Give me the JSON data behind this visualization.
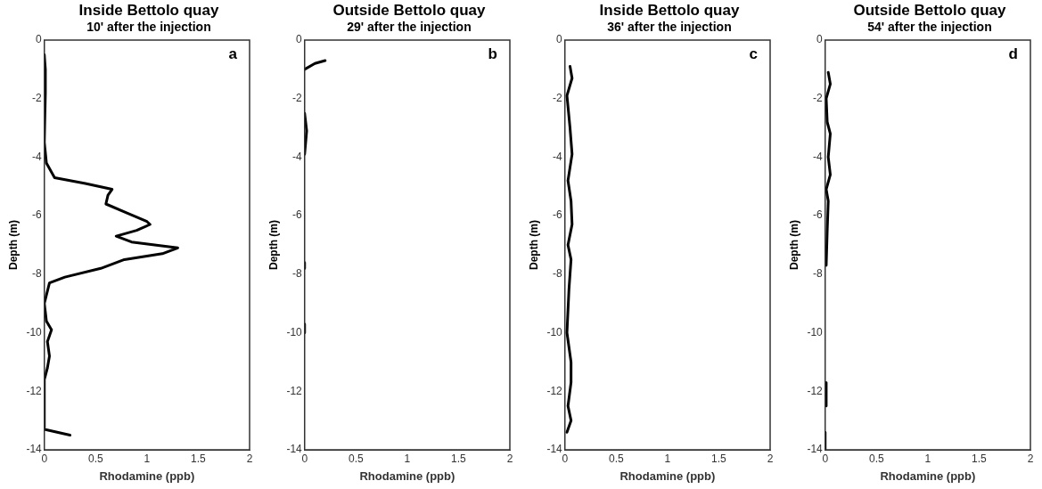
{
  "chart_data": [
    {
      "type": "line",
      "title": "Inside Bettolo quay",
      "subtitle": "10' after the injection",
      "xlabel": "Rhodamine (ppb)",
      "ylabel": "Depth (m)",
      "annotations": [
        "a"
      ],
      "xlim": [
        0,
        2
      ],
      "xticks": [
        0,
        0.5,
        1,
        1.5,
        2
      ],
      "ylim": [
        -14,
        0
      ],
      "yticks": [
        -14,
        -12,
        -10,
        -8,
        -6,
        -4,
        -2,
        0
      ],
      "series": [
        {
          "color": "#000000",
          "x": [
            0,
            0.01,
            0.01,
            0,
            0.02,
            0.1,
            0.4,
            0.66,
            0.62,
            0.6,
            0.8,
            1.0,
            1.03,
            0.9,
            0.7,
            0.85,
            1.3,
            1.15,
            0.78,
            0.55,
            0.2,
            0.05,
            0,
            0.02,
            0.07,
            0.03,
            0.05,
            0.03,
            0,
            0,
            0.25
          ],
          "values": [
            -0.5,
            -1,
            -1.8,
            -3.5,
            -4.2,
            -4.7,
            -4.9,
            -5.1,
            -5.3,
            -5.6,
            -5.9,
            -6.2,
            -6.3,
            -6.5,
            -6.7,
            -6.9,
            -7.1,
            -7.3,
            -7.5,
            -7.8,
            -8.1,
            -8.3,
            -9,
            -9.6,
            -9.9,
            -10.3,
            -10.8,
            -11.2,
            -11.6,
            -13.3,
            -13.5
          ]
        }
      ]
    },
    {
      "type": "line",
      "title": "Outside Bettolo quay",
      "subtitle": "29' after the injection",
      "xlabel": "Rhodamine (ppb)",
      "ylabel": "Depth (m)",
      "annotations": [
        "b"
      ],
      "xlim": [
        0,
        2
      ],
      "xticks": [
        0,
        0.5,
        1,
        1.5,
        2
      ],
      "ylim": [
        -14,
        0
      ],
      "yticks": [
        -14,
        -12,
        -10,
        -8,
        -6,
        -4,
        -2,
        0
      ],
      "series": [
        {
          "color": "#000000",
          "x": [
            0.2,
            0.1,
            0,
            null,
            0,
            0.02,
            0,
            null,
            0,
            0,
            null,
            0,
            0
          ],
          "values": [
            -0.7,
            -0.8,
            -1,
            null,
            -2.5,
            -3.1,
            -3.9,
            null,
            -7.6,
            -7.8,
            null,
            -9.7,
            -10
          ]
        }
      ]
    },
    {
      "type": "line",
      "title": "Inside Bettolo quay",
      "subtitle": "36' after the injection",
      "xlabel": "Rhodamine (ppb)",
      "ylabel": "Depth (m)",
      "annotations": [
        "c"
      ],
      "xlim": [
        0,
        2
      ],
      "xticks": [
        0,
        0.5,
        1,
        1.5,
        2
      ],
      "ylim": [
        -14,
        0
      ],
      "yticks": [
        -14,
        -12,
        -10,
        -8,
        -6,
        -4,
        -2,
        0
      ],
      "series": [
        {
          "color": "#000000",
          "x": [
            0.05,
            0.07,
            0.02,
            0.05,
            0.07,
            0.03,
            0.06,
            0.07,
            0.03,
            0.06,
            0.04,
            0.02,
            0.06,
            0.06,
            0.03,
            0.06,
            0.02
          ],
          "values": [
            -0.9,
            -1.3,
            -1.9,
            -3,
            -3.9,
            -4.8,
            -5.5,
            -6.3,
            -7,
            -7.5,
            -8.5,
            -10,
            -11,
            -11.7,
            -12.5,
            -13,
            -13.4
          ]
        }
      ]
    },
    {
      "type": "line",
      "title": "Outside Bettolo quay",
      "subtitle": "54' after the injection",
      "xlabel": "Rhodamine (ppb)",
      "ylabel": "Depth (m)",
      "annotations": [
        "d"
      ],
      "xlim": [
        0,
        2
      ],
      "xticks": [
        0,
        0.5,
        1,
        1.5,
        2
      ],
      "ylim": [
        -14,
        0
      ],
      "yticks": [
        -14,
        -12,
        -10,
        -8,
        -6,
        -4,
        -2,
        0
      ],
      "series": [
        {
          "color": "#000000",
          "x": [
            0.03,
            0.05,
            0.01,
            0.02,
            0.05,
            0.03,
            0.05,
            0.01,
            0.03,
            0.02,
            0.01,
            null,
            0.01,
            0.01,
            null,
            0,
            0
          ],
          "values": [
            -1.1,
            -1.5,
            -2,
            -2.8,
            -3.2,
            -4,
            -4.6,
            -5.1,
            -5.5,
            -6.5,
            -7.7,
            null,
            -11.7,
            -12.5,
            null,
            -13.4,
            -14
          ]
        }
      ]
    }
  ]
}
